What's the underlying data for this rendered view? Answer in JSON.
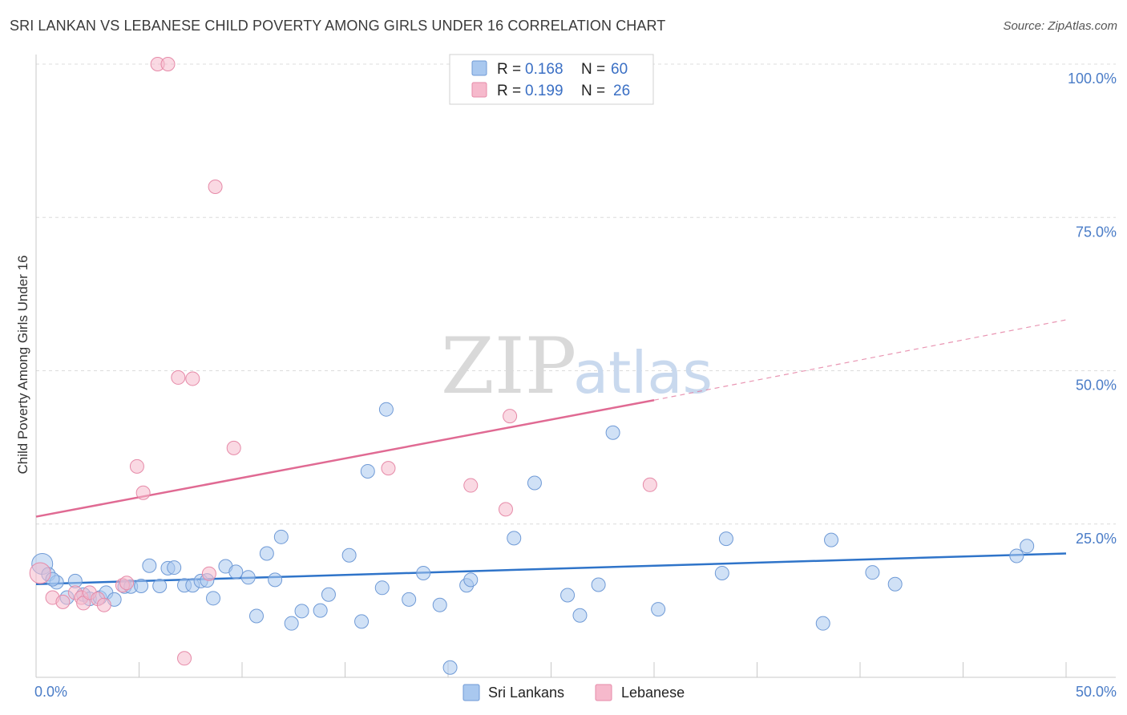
{
  "title": "SRI LANKAN VS LEBANESE CHILD POVERTY AMONG GIRLS UNDER 16 CORRELATION CHART",
  "source": "Source: ZipAtlas.com",
  "watermark": {
    "zip": "ZIP",
    "atlas": "atlas"
  },
  "colors": {
    "blue_fill": "#a9c8ef",
    "blue_stroke": "#6f9ad6",
    "blue_line": "#2f74c9",
    "pink_fill": "#f6b9cc",
    "pink_stroke": "#e68aa8",
    "pink_line": "#e06a93"
  },
  "legend": {
    "r_label": "R =",
    "n_label": "N =",
    "entries": [
      {
        "r": "0.168",
        "n": "60"
      },
      {
        "r": "0.199",
        "n": "26"
      }
    ]
  },
  "chart_data": {
    "type": "scatter",
    "ylabel": "Child Poverty Among Girls Under 16",
    "xlim": [
      0,
      50
    ],
    "ylim": [
      0,
      100
    ],
    "x_tick_labels": [
      "0.0%",
      "50.0%"
    ],
    "y_tick_labels": [
      "100.0%",
      "75.0%",
      "50.0%",
      "25.0%"
    ],
    "y_tick_values": [
      100,
      75,
      50,
      25
    ],
    "series": [
      {
        "name": "Sri Lankans",
        "trend": {
          "x0": 0,
          "y0": 15.2,
          "x1": 50,
          "y1": 20.2
        },
        "points": [
          [
            0.3,
            18.5
          ],
          [
            0.6,
            16.8
          ],
          [
            1.0,
            15.5
          ],
          [
            1.9,
            15.7
          ],
          [
            1.5,
            13.0
          ],
          [
            2.3,
            13.5
          ],
          [
            2.6,
            12.8
          ],
          [
            3.1,
            13.0
          ],
          [
            3.4,
            13.8
          ],
          [
            3.8,
            12.7
          ],
          [
            4.3,
            14.8
          ],
          [
            4.6,
            14.8
          ],
          [
            5.1,
            14.9
          ],
          [
            5.5,
            18.2
          ],
          [
            6.0,
            14.9
          ],
          [
            6.4,
            17.8
          ],
          [
            6.7,
            17.9
          ],
          [
            7.2,
            15.0
          ],
          [
            7.6,
            15.0
          ],
          [
            8.0,
            15.7
          ],
          [
            8.3,
            15.8
          ],
          [
            8.6,
            12.9
          ],
          [
            9.2,
            18.1
          ],
          [
            9.7,
            17.2
          ],
          [
            10.3,
            16.3
          ],
          [
            10.7,
            10.0
          ],
          [
            11.2,
            20.2
          ],
          [
            11.6,
            15.9
          ],
          [
            11.9,
            22.9
          ],
          [
            12.4,
            8.8
          ],
          [
            12.9,
            10.8
          ],
          [
            13.8,
            10.9
          ],
          [
            14.2,
            13.5
          ],
          [
            15.2,
            19.9
          ],
          [
            15.8,
            9.1
          ],
          [
            16.1,
            33.6
          ],
          [
            16.8,
            14.6
          ],
          [
            17.0,
            43.7
          ],
          [
            18.1,
            12.7
          ],
          [
            18.8,
            17.0
          ],
          [
            19.6,
            11.8
          ],
          [
            20.1,
            1.6
          ],
          [
            20.9,
            15.0
          ],
          [
            21.1,
            15.9
          ],
          [
            23.2,
            22.7
          ],
          [
            24.2,
            31.7
          ],
          [
            25.8,
            13.4
          ],
          [
            26.4,
            10.1
          ],
          [
            27.3,
            15.1
          ],
          [
            28.0,
            39.9
          ],
          [
            30.2,
            11.1
          ],
          [
            33.3,
            17.0
          ],
          [
            33.5,
            22.6
          ],
          [
            38.2,
            8.8
          ],
          [
            38.6,
            22.4
          ],
          [
            40.6,
            17.1
          ],
          [
            41.7,
            15.2
          ],
          [
            47.6,
            19.8
          ],
          [
            48.1,
            21.4
          ],
          [
            0.8,
            16.0
          ]
        ]
      },
      {
        "name": "Lebanese",
        "trend": {
          "x0": 0,
          "y0": 26.2,
          "x1": 30,
          "y1": 45.2,
          "dash_x1": 50,
          "dash_y1": 58.3
        },
        "points": [
          [
            0.2,
            17.0
          ],
          [
            0.8,
            13.0
          ],
          [
            1.3,
            12.3
          ],
          [
            1.9,
            13.8
          ],
          [
            2.2,
            13.0
          ],
          [
            2.3,
            12.1
          ],
          [
            2.6,
            13.8
          ],
          [
            3.0,
            12.8
          ],
          [
            3.3,
            11.8
          ],
          [
            4.2,
            15.0
          ],
          [
            4.4,
            15.4
          ],
          [
            4.9,
            34.4
          ],
          [
            5.2,
            30.1
          ],
          [
            5.9,
            100.0
          ],
          [
            6.4,
            100.0
          ],
          [
            6.9,
            48.9
          ],
          [
            7.2,
            3.1
          ],
          [
            7.6,
            48.7
          ],
          [
            8.4,
            16.9
          ],
          [
            8.7,
            80.0
          ],
          [
            9.6,
            37.4
          ],
          [
            17.1,
            34.1
          ],
          [
            21.1,
            31.3
          ],
          [
            22.8,
            27.4
          ],
          [
            23.0,
            42.6
          ],
          [
            29.8,
            31.4
          ]
        ]
      }
    ]
  }
}
